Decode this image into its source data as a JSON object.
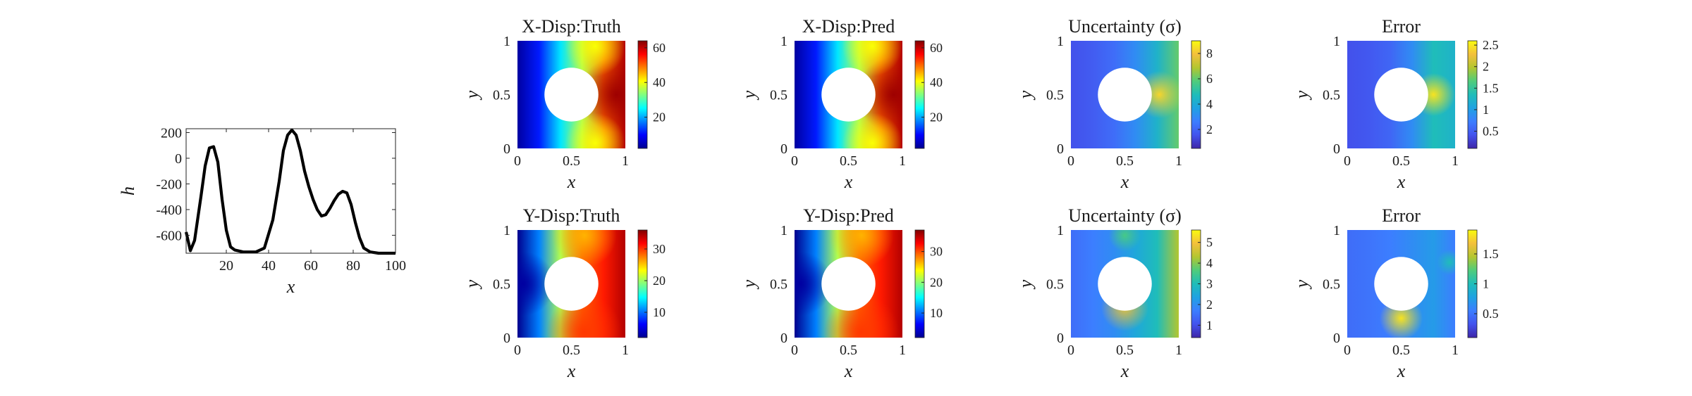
{
  "chart_data": [
    {
      "type": "line",
      "xlabel": "x",
      "ylabel": "h",
      "xlim": [
        1,
        100
      ],
      "ylim": [
        -740,
        230
      ],
      "xticks": [
        "20",
        "40",
        "60",
        "80",
        "100"
      ],
      "yticks": [
        "200",
        "0",
        "-200",
        "-400",
        "-600"
      ],
      "x": [
        1,
        3,
        5,
        8,
        10,
        12,
        14,
        16,
        18,
        20,
        22,
        24,
        28,
        34,
        38,
        42,
        45,
        47,
        49,
        51,
        53,
        55,
        57,
        59,
        61,
        63,
        65,
        67,
        69,
        71,
        73,
        75,
        77,
        79,
        81,
        83,
        85,
        88,
        92,
        96,
        100
      ],
      "y": [
        -575,
        -720,
        -640,
        -300,
        -60,
        80,
        90,
        -30,
        -320,
        -560,
        -690,
        -715,
        -730,
        -730,
        -700,
        -480,
        -180,
        60,
        180,
        220,
        180,
        60,
        -100,
        -220,
        -320,
        -400,
        -450,
        -440,
        -390,
        -330,
        -280,
        -258,
        -270,
        -360,
        -500,
        -620,
        -700,
        -730,
        -740,
        -740,
        -740
      ],
      "grid": false
    },
    {
      "type": "heatmap",
      "title": "X-Disp:Truth",
      "xlabel": "x",
      "ylabel": "y",
      "xticks": [
        "0",
        "0.5",
        "1"
      ],
      "yticks": [
        "1",
        "0.5",
        "0"
      ],
      "colormap": "jet",
      "clim": [
        2,
        64
      ],
      "colorbar_ticks": [
        "60",
        "40",
        "20"
      ],
      "hole": {
        "center": [
          0.5,
          0.5
        ],
        "radius": 0.25
      }
    },
    {
      "type": "heatmap",
      "title": "X-Disp:Pred",
      "xlabel": "x",
      "ylabel": "y",
      "xticks": [
        "0",
        "0.5",
        "1"
      ],
      "yticks": [
        "1",
        "0.5",
        "0"
      ],
      "colormap": "jet",
      "clim": [
        2,
        64
      ],
      "colorbar_ticks": [
        "60",
        "40",
        "20"
      ],
      "hole": {
        "center": [
          0.5,
          0.5
        ],
        "radius": 0.25
      }
    },
    {
      "type": "heatmap",
      "title": "Uncertainty (σ)",
      "xlabel": "x",
      "ylabel": "y",
      "xticks": [
        "0",
        "0.5",
        "1"
      ],
      "yticks": [
        "1",
        "0.5",
        "0"
      ],
      "colormap": "parula",
      "clim": [
        0.5,
        9
      ],
      "colorbar_ticks": [
        "8",
        "6",
        "4",
        "2"
      ],
      "hole": {
        "center": [
          0.5,
          0.5
        ],
        "radius": 0.25
      }
    },
    {
      "type": "heatmap",
      "title": "Error",
      "xlabel": "x",
      "ylabel": "y",
      "xticks": [
        "0",
        "0.5",
        "1"
      ],
      "yticks": [
        "1",
        "0.5",
        "0"
      ],
      "colormap": "parula",
      "clim": [
        0.1,
        2.6
      ],
      "colorbar_ticks": [
        "2.5",
        "2",
        "1.5",
        "1",
        "0.5"
      ],
      "hole": {
        "center": [
          0.5,
          0.5
        ],
        "radius": 0.25
      }
    },
    {
      "type": "heatmap",
      "title": "Y-Disp:Truth",
      "xlabel": "x",
      "ylabel": "y",
      "xticks": [
        "0",
        "0.5",
        "1"
      ],
      "yticks": [
        "1",
        "0.5",
        "0"
      ],
      "colormap": "jet",
      "clim": [
        2,
        36
      ],
      "colorbar_ticks": [
        "30",
        "20",
        "10"
      ],
      "hole": {
        "center": [
          0.5,
          0.5
        ],
        "radius": 0.25
      }
    },
    {
      "type": "heatmap",
      "title": "Y-Disp:Pred",
      "xlabel": "x",
      "ylabel": "y",
      "xticks": [
        "0",
        "0.5",
        "1"
      ],
      "yticks": [
        "1",
        "0.5",
        "0"
      ],
      "colormap": "jet",
      "clim": [
        2,
        37
      ],
      "colorbar_ticks": [
        "30",
        "20",
        "10"
      ],
      "hole": {
        "center": [
          0.5,
          0.5
        ],
        "radius": 0.25
      }
    },
    {
      "type": "heatmap",
      "title": "Uncertainty (σ)",
      "xlabel": "x",
      "ylabel": "y",
      "xticks": [
        "0",
        "0.5",
        "1"
      ],
      "yticks": [
        "1",
        "0.5",
        "0"
      ],
      "colormap": "parula",
      "clim": [
        0.4,
        5.6
      ],
      "colorbar_ticks": [
        "5",
        "4",
        "3",
        "2",
        "1"
      ],
      "hole": {
        "center": [
          0.5,
          0.5
        ],
        "radius": 0.25
      }
    },
    {
      "type": "heatmap",
      "title": "Error",
      "xlabel": "x",
      "ylabel": "y",
      "xticks": [
        "0",
        "0.5",
        "1"
      ],
      "yticks": [
        "1",
        "0.5",
        "0"
      ],
      "colormap": "parula",
      "clim": [
        0.1,
        1.9
      ],
      "colorbar_ticks": [
        "1.5",
        "1",
        "0.5"
      ],
      "hole": {
        "center": [
          0.5,
          0.5
        ],
        "radius": 0.25
      }
    }
  ]
}
